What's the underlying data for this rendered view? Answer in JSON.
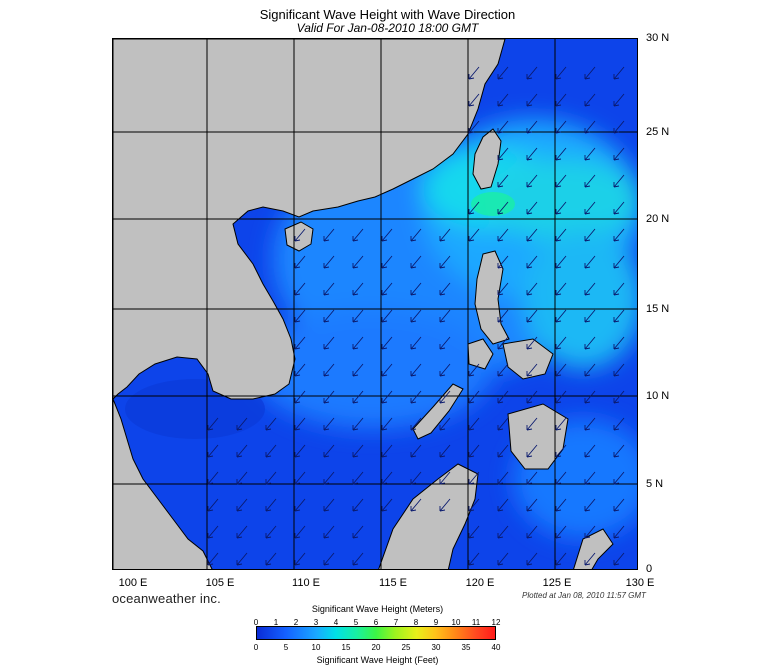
{
  "title": "Significant Wave Height with Wave Direction",
  "subtitle": "Valid For Jan-08-2010 18:00 GMT",
  "lat_labels": [
    "30 N",
    "25 N",
    "20 N",
    "15 N",
    "10 N",
    "5 N",
    "0"
  ],
  "lon_labels": [
    "100 E",
    "105 E",
    "110 E",
    "115 E",
    "120 E",
    "125 E",
    "130 E"
  ],
  "brand": "oceanweather inc.",
  "plotted_note": "Plotted at Jan 08, 2010 11:57 GMT",
  "colorbar": {
    "title": "Significant Wave Height (Meters)",
    "meters_ticks": [
      "0",
      "1",
      "2",
      "3",
      "4",
      "5",
      "6",
      "7",
      "8",
      "9",
      "10",
      "11",
      "12"
    ],
    "feet_ticks": [
      "0",
      "5",
      "10",
      "15",
      "20",
      "25",
      "30",
      "35",
      "40"
    ],
    "footer": "Significant Wave Height (Feet)"
  },
  "colors": {
    "land": "#c0c0c0",
    "water_low": "#0b3fe8",
    "water_mid": "#1a8cff",
    "water_high": "#19d2f0",
    "water_peak": "#19f0a0",
    "arrow": "#0a1a6e",
    "grid": "#000000"
  }
}
